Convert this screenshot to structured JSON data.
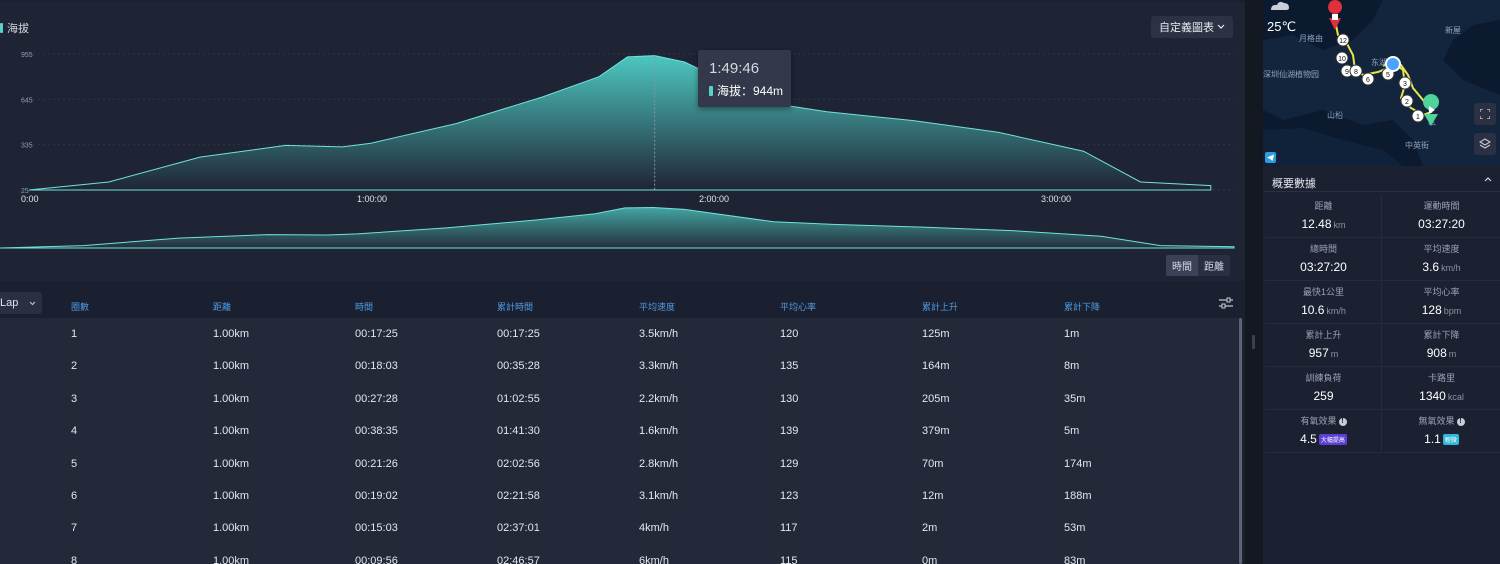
{
  "chart": {
    "legend_label": "海拔",
    "custom_chart_button": "自定義圖表",
    "toggle": [
      "時間",
      "距離"
    ],
    "toggle_active": 0,
    "tooltip": {
      "time": "1:49:46",
      "label": "海拔：944m"
    }
  },
  "chart_data": {
    "type": "area",
    "title": "",
    "series": [
      {
        "name": "海拔"
      }
    ],
    "x_ticks": [
      "0:00",
      "1:00:00",
      "2:00:00",
      "3:00:00"
    ],
    "y_ticks": [
      "955",
      "645",
      "335",
      "25"
    ],
    "ylim": [
      25,
      955
    ],
    "x_unit": "elapsed time (h:mm:ss)",
    "x": [
      "0:00",
      "0:14:00",
      "0:30:00",
      "0:45:00",
      "0:55:00",
      "1:00:00",
      "1:15:00",
      "1:30:00",
      "1:40:00",
      "1:45:00",
      "1:49:46",
      "1:55:00",
      "2:10:00",
      "2:20:00",
      "2:35:00",
      "2:50:00",
      "3:05:00",
      "3:15:00",
      "3:27:20"
    ],
    "y": [
      25,
      80,
      250,
      330,
      320,
      345,
      480,
      660,
      800,
      935,
      944,
      900,
      620,
      560,
      500,
      420,
      290,
      80,
      55
    ],
    "grid": true,
    "legend": "top-left"
  },
  "table": {
    "lap_select": "Lap",
    "headers": [
      "圈數",
      "距離",
      "時間",
      "累計時間",
      "平均速度",
      "平均心率",
      "累計上升",
      "累計下降"
    ],
    "rows": [
      [
        "1",
        "1.00km",
        "00:17:25",
        "00:17:25",
        "3.5km/h",
        "120",
        "125m",
        "1m"
      ],
      [
        "2",
        "1.00km",
        "00:18:03",
        "00:35:28",
        "3.3km/h",
        "135",
        "164m",
        "8m"
      ],
      [
        "3",
        "1.00km",
        "00:27:28",
        "01:02:55",
        "2.2km/h",
        "130",
        "205m",
        "35m"
      ],
      [
        "4",
        "1.00km",
        "00:38:35",
        "01:41:30",
        "1.6km/h",
        "139",
        "379m",
        "5m"
      ],
      [
        "5",
        "1.00km",
        "00:21:26",
        "02:02:56",
        "2.8km/h",
        "129",
        "70m",
        "174m"
      ],
      [
        "6",
        "1.00km",
        "00:19:02",
        "02:21:58",
        "3.1km/h",
        "123",
        "12m",
        "188m"
      ],
      [
        "7",
        "1.00km",
        "00:15:03",
        "02:37:01",
        "4km/h",
        "117",
        "2m",
        "53m"
      ],
      [
        "8",
        "1.00km",
        "00:09:56",
        "02:46:57",
        "6km/h",
        "115",
        "0m",
        "83m"
      ]
    ]
  },
  "map": {
    "temperature": "25℃",
    "labels": [
      "月格由",
      "东湖",
      "深圳仙湖植物园",
      "新屋",
      "山柗",
      "中英街",
      "区"
    ],
    "markers": [
      "12",
      "10",
      "9",
      "8",
      "6",
      "5",
      "3",
      "2",
      "1"
    ]
  },
  "summary": {
    "title": "概要數據",
    "cells": [
      {
        "label": "距離",
        "value": "12.48",
        "unit": "km"
      },
      {
        "label": "運動時間",
        "value": "03:27:20",
        "unit": ""
      },
      {
        "label": "總時間",
        "value": "03:27:20",
        "unit": ""
      },
      {
        "label": "平均速度",
        "value": "3.6",
        "unit": "km/h"
      },
      {
        "label": "最快1公里",
        "value": "10.6",
        "unit": "km/h"
      },
      {
        "label": "平均心率",
        "value": "128",
        "unit": "bpm"
      },
      {
        "label": "累計上升",
        "value": "957",
        "unit": "m"
      },
      {
        "label": "累計下降",
        "value": "908",
        "unit": "m"
      },
      {
        "label": "訓練負荷",
        "value": "259",
        "unit": ""
      },
      {
        "label": "卡路里",
        "value": "1340",
        "unit": "kcal"
      },
      {
        "label": "有氧效果",
        "value": "4.5",
        "unit": "",
        "badge": "大幅提高"
      },
      {
        "label": "無氧效果",
        "value": "1.1",
        "unit": "",
        "badge": "輕微"
      }
    ]
  },
  "colors": {
    "accent": "#5ad0c8",
    "header_text": "#4e9be5",
    "background": "#1b2030"
  }
}
